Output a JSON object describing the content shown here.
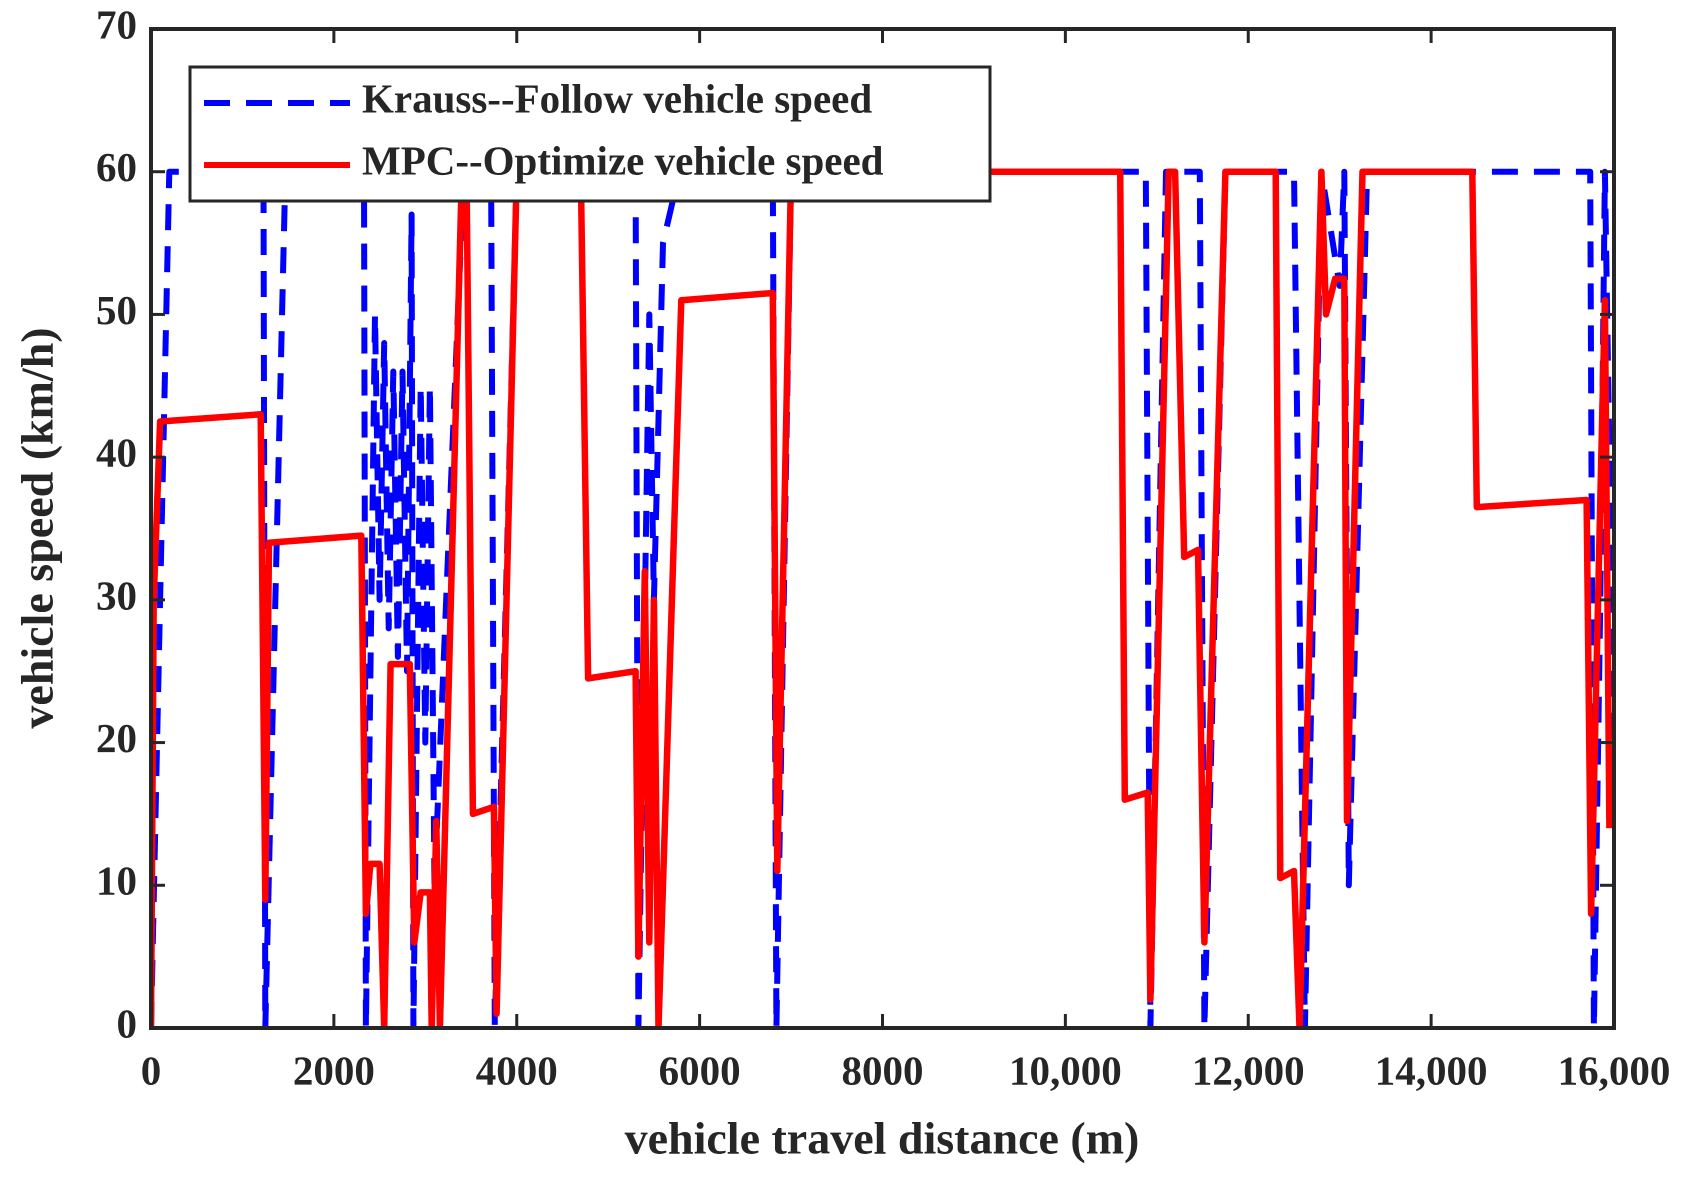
{
  "chart_data": {
    "type": "line",
    "xlabel": "vehicle travel distance (m)",
    "ylabel": "vehicle speed (km/h)",
    "xlim": [
      0,
      16000
    ],
    "ylim": [
      0,
      70
    ],
    "xticks": [
      0,
      2000,
      4000,
      6000,
      8000,
      {
        "value": 10000,
        "label": "10,000"
      },
      {
        "value": 12000,
        "label": "12,000"
      },
      {
        "value": 14000,
        "label": "14,000"
      },
      {
        "value": 16000,
        "label": "16,000"
      }
    ],
    "yticks": [
      0,
      10,
      20,
      30,
      40,
      50,
      60,
      70
    ],
    "grid": false,
    "legend": "upper left",
    "series": [
      {
        "name": "Krauss--Follow vehicle speed",
        "color": "#0000ff",
        "dash": "dashed",
        "x": [
          0,
          100,
          200,
          1230,
          1250,
          1470,
          2330,
          2350,
          2450,
          2500,
          2550,
          2600,
          2650,
          2700,
          2750,
          2800,
          2850,
          2870,
          2950,
          3000,
          3050,
          3100,
          3420,
          3720,
          3760,
          4000,
          5300,
          5330,
          5450,
          5500,
          5600,
          5780,
          6800,
          6840,
          7000,
          10880,
          10930,
          11100,
          11470,
          11520,
          11750,
          12500,
          12620,
          12800,
          13000,
          13050,
          13100,
          13300,
          15740,
          15780,
          15850,
          15900,
          16000
        ],
        "values": [
          0,
          30,
          60,
          60,
          0,
          60,
          60,
          0,
          50,
          30,
          48,
          28,
          46,
          26,
          46,
          25,
          57,
          0,
          45,
          20,
          45,
          10,
          60,
          60,
          0,
          60,
          60,
          0,
          50,
          30,
          55,
          60,
          60,
          0,
          60,
          60,
          0,
          60,
          60,
          0,
          60,
          60,
          0,
          60,
          52,
          60,
          10,
          60,
          60,
          0,
          30,
          60,
          20
        ]
      },
      {
        "name": "MPC--Optimize vehicle speed",
        "color": "#ff0000",
        "dash": "solid",
        "x": [
          0,
          30,
          100,
          1200,
          1250,
          1290,
          2300,
          2350,
          2400,
          2500,
          2550,
          2620,
          2830,
          2880,
          2950,
          3050,
          3070,
          3120,
          3160,
          3400,
          3450,
          3520,
          3750,
          3780,
          4000,
          4700,
          4780,
          5300,
          5330,
          5400,
          5450,
          5500,
          5550,
          5800,
          6800,
          6850,
          7000,
          10600,
          10650,
          10900,
          10930,
          11130,
          11200,
          11300,
          11450,
          11520,
          11750,
          12300,
          12350,
          12500,
          12560,
          12800,
          12850,
          12950,
          13050,
          13080,
          13250,
          14450,
          14500,
          15700,
          15750,
          15850,
          15900,
          15950
        ],
        "values": [
          0,
          30,
          42.5,
          43,
          9,
          34,
          34.5,
          8,
          11.5,
          11.5,
          0,
          25.5,
          25.5,
          6,
          9.5,
          9.5,
          0,
          14.5,
          0,
          60,
          60,
          15,
          15.5,
          1,
          60,
          60,
          24.5,
          25,
          5,
          32,
          6,
          30,
          0,
          51,
          51.5,
          11,
          60,
          60,
          16,
          16.5,
          2,
          60,
          60,
          33,
          33.5,
          6,
          60,
          60,
          10.5,
          11,
          0,
          60,
          50,
          52.5,
          52.5,
          14.5,
          60,
          60,
          36.5,
          37,
          8,
          37,
          51,
          14
        ]
      }
    ]
  }
}
